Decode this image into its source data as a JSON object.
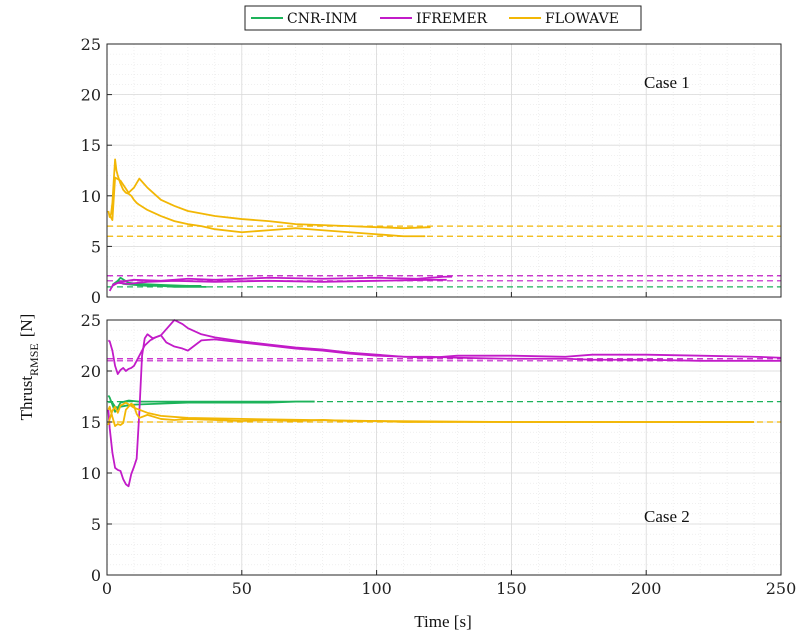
{
  "figure": {
    "xlabel": "Time [s]",
    "ylabel_main": "Thrust",
    "ylabel_sub": "RMSE",
    "ylabel_unit": "[N]"
  },
  "legend": [
    {
      "name": "CNR-INM",
      "color": "#1db35a"
    },
    {
      "name": "IFREMER",
      "color": "#c21bc8"
    },
    {
      "name": "FLOWAVE",
      "color": "#f2b705"
    }
  ],
  "chart_data": [
    {
      "type": "line",
      "annotation": "Case 1",
      "xlim": [
        0,
        250
      ],
      "ylim": [
        0,
        25
      ],
      "xticks": [
        0,
        50,
        100,
        150,
        200,
        250
      ],
      "yticks": [
        0,
        5,
        10,
        15,
        20,
        25
      ],
      "grid": true,
      "legend_position": "top-center",
      "series": [
        {
          "name": "CNR-INM",
          "color": "#1db35a",
          "style": "solid",
          "x": [
            2,
            4,
            6,
            10,
            15,
            20,
            25,
            30,
            35,
            37
          ],
          "y": [
            1.2,
            1.6,
            1.3,
            1.2,
            1.1,
            1.1,
            1.0,
            1.0,
            1.0,
            1.0
          ]
        },
        {
          "name": "CNR-INM",
          "color": "#1db35a",
          "style": "solid",
          "x": [
            3,
            5,
            8,
            12,
            20,
            30,
            35
          ],
          "y": [
            1.3,
            1.9,
            1.4,
            1.3,
            1.2,
            1.1,
            1.1
          ]
        },
        {
          "name": "IFREMER",
          "color": "#c21bc8",
          "style": "solid",
          "x": [
            1,
            2,
            4,
            8,
            15,
            25,
            40,
            60,
            80,
            100,
            120,
            126
          ],
          "y": [
            0.6,
            1.1,
            1.4,
            1.3,
            1.5,
            1.6,
            1.5,
            1.6,
            1.5,
            1.6,
            1.7,
            1.7
          ]
        },
        {
          "name": "IFREMER",
          "color": "#c21bc8",
          "style": "solid",
          "x": [
            2,
            5,
            10,
            20,
            30,
            40,
            60,
            80,
            100,
            115,
            120,
            125,
            128
          ],
          "y": [
            1.2,
            1.5,
            1.7,
            1.6,
            1.8,
            1.7,
            1.9,
            1.8,
            1.9,
            1.8,
            1.9,
            2.0,
            2.0
          ]
        },
        {
          "name": "FLOWAVE",
          "color": "#f2b705",
          "style": "solid",
          "x": [
            0.5,
            1,
            1.5,
            2,
            2.5,
            3,
            3.5,
            4,
            5,
            6,
            7,
            8,
            9,
            10,
            11,
            12,
            15,
            20,
            25,
            30,
            35,
            40,
            50,
            60,
            70,
            80,
            90,
            100,
            110,
            118
          ],
          "y": [
            8.5,
            7.9,
            8.2,
            9.3,
            11.5,
            13.6,
            12.5,
            12.0,
            11.2,
            10.6,
            10.3,
            10.2,
            10.0,
            9.6,
            9.3,
            9.1,
            8.6,
            8.0,
            7.5,
            7.2,
            7.0,
            6.7,
            6.4,
            6.6,
            6.8,
            6.6,
            6.4,
            6.2,
            6.0,
            6.0
          ]
        },
        {
          "name": "FLOWAVE",
          "color": "#f2b705",
          "style": "solid",
          "x": [
            1,
            2,
            3,
            5,
            8,
            10,
            12,
            15,
            20,
            25,
            30,
            40,
            50,
            60,
            70,
            80,
            90,
            100,
            110,
            120
          ],
          "y": [
            8.1,
            7.6,
            11.8,
            11.5,
            10.3,
            10.8,
            11.7,
            10.8,
            9.6,
            9.0,
            8.5,
            8.0,
            7.7,
            7.5,
            7.2,
            7.1,
            7.0,
            6.9,
            6.8,
            6.9
          ]
        },
        {
          "name": "CNR-INM",
          "color": "#1db35a",
          "style": "dashed",
          "x": [
            0,
            250
          ],
          "y": [
            1.0,
            1.0
          ]
        },
        {
          "name": "IFREMER",
          "color": "#c21bc8",
          "style": "dashed",
          "x": [
            0,
            250
          ],
          "y": [
            1.6,
            1.6
          ]
        },
        {
          "name": "IFREMER",
          "color": "#c21bc8",
          "style": "dashed",
          "x": [
            0,
            250
          ],
          "y": [
            2.1,
            2.1
          ]
        },
        {
          "name": "FLOWAVE",
          "color": "#f2b705",
          "style": "dashed",
          "x": [
            0,
            250
          ],
          "y": [
            6.0,
            6.0
          ]
        },
        {
          "name": "FLOWAVE",
          "color": "#f2b705",
          "style": "dashed",
          "x": [
            0,
            250
          ],
          "y": [
            7.0,
            7.0
          ]
        }
      ]
    },
    {
      "type": "line",
      "annotation": "Case 2",
      "xlim": [
        0,
        250
      ],
      "ylim": [
        0,
        25
      ],
      "xticks": [
        0,
        50,
        100,
        150,
        200,
        250
      ],
      "yticks": [
        0,
        5,
        10,
        15,
        20,
        25
      ],
      "grid": true,
      "series": [
        {
          "name": "CNR-INM",
          "color": "#1db35a",
          "style": "solid",
          "x": [
            0.5,
            1,
            2,
            3,
            4,
            5,
            7,
            10,
            20,
            30,
            40,
            50,
            60,
            70,
            77
          ],
          "y": [
            17.6,
            17.4,
            16.7,
            16.0,
            16.3,
            16.5,
            16.6,
            16.7,
            16.8,
            16.9,
            16.9,
            16.9,
            16.9,
            17.0,
            17.0
          ]
        },
        {
          "name": "CNR-INM",
          "color": "#1db35a",
          "style": "solid",
          "x": [
            0.5,
            1,
            2,
            3,
            4,
            5,
            8,
            12,
            20,
            30,
            40,
            50,
            60,
            70,
            77
          ],
          "y": [
            16.9,
            17.0,
            16.9,
            16.5,
            16.4,
            16.9,
            17.1,
            17.0,
            17.0,
            17.0,
            17.0,
            17.0,
            17.0,
            17.0,
            17.0
          ]
        },
        {
          "name": "IFREMER",
          "color": "#c21bc8",
          "style": "solid",
          "x": [
            0.5,
            1,
            2,
            3,
            4,
            5,
            6,
            7,
            8,
            9,
            10,
            11,
            12,
            13,
            14,
            15,
            17,
            20,
            22,
            25,
            28,
            30,
            35,
            40,
            50,
            60,
            70,
            80,
            90,
            100,
            110,
            120,
            130,
            150,
            170,
            180,
            200,
            220,
            240,
            250
          ],
          "y": [
            16.2,
            14.4,
            12.0,
            10.5,
            10.3,
            10.2,
            9.4,
            8.9,
            8.7,
            9.9,
            10.6,
            11.4,
            16.0,
            21.5,
            23.2,
            23.6,
            23.2,
            23.5,
            22.8,
            22.4,
            22.2,
            22.0,
            23.0,
            23.1,
            22.8,
            22.5,
            22.2,
            22.0,
            21.7,
            21.5,
            21.4,
            21.3,
            21.5,
            21.5,
            21.4,
            21.6,
            21.6,
            21.5,
            21.4,
            21.3
          ]
        },
        {
          "name": "IFREMER",
          "color": "#c21bc8",
          "style": "solid",
          "x": [
            0.5,
            1,
            2,
            3,
            4,
            5,
            6,
            7,
            8,
            9,
            10,
            12,
            14,
            16,
            18,
            20,
            22,
            25,
            28,
            30,
            35,
            40,
            50,
            60,
            70,
            80,
            90,
            100,
            110,
            120,
            130,
            150,
            170,
            180,
            200,
            220,
            240,
            250
          ],
          "y": [
            23.0,
            22.9,
            22.0,
            20.5,
            19.7,
            20.1,
            20.3,
            20.0,
            20.2,
            20.3,
            20.5,
            21.5,
            22.5,
            23.0,
            23.3,
            23.5,
            24.1,
            25.0,
            24.6,
            24.2,
            23.6,
            23.3,
            22.9,
            22.6,
            22.3,
            22.1,
            21.8,
            21.6,
            21.4,
            21.4,
            21.3,
            21.2,
            21.2,
            21.1,
            21.1,
            21.0,
            21.0,
            21.0
          ]
        },
        {
          "name": "FLOWAVE",
          "color": "#f2b705",
          "style": "solid",
          "x": [
            0.5,
            1,
            2,
            3,
            4,
            5,
            6,
            7,
            8,
            9,
            10,
            11,
            12,
            15,
            20,
            25,
            30,
            40,
            50,
            60,
            70,
            80,
            90,
            100,
            110,
            120,
            150,
            200,
            240
          ],
          "y": [
            16.2,
            16.5,
            15.5,
            14.6,
            14.8,
            14.7,
            14.9,
            16.2,
            16.5,
            16.8,
            16.6,
            15.8,
            15.4,
            15.7,
            15.3,
            15.2,
            15.3,
            15.2,
            15.1,
            15.2,
            15.1,
            15.2,
            15.1,
            15.1,
            15.0,
            15.0,
            15.0,
            15.0,
            15.0
          ]
        },
        {
          "name": "FLOWAVE",
          "color": "#f2b705",
          "style": "solid",
          "x": [
            0.5,
            1,
            2,
            3,
            4,
            5,
            7,
            10,
            15,
            20,
            30,
            50,
            100,
            150,
            200,
            240
          ],
          "y": [
            14.7,
            15.3,
            16.1,
            16.5,
            15.9,
            16.6,
            16.9,
            16.4,
            15.9,
            15.6,
            15.4,
            15.3,
            15.1,
            15.0,
            15.0,
            15.0
          ]
        },
        {
          "name": "CNR-INM",
          "color": "#1db35a",
          "style": "dashed",
          "x": [
            0,
            250
          ],
          "y": [
            17.0,
            17.0
          ]
        },
        {
          "name": "IFREMER",
          "color": "#c21bc8",
          "style": "dashed",
          "x": [
            0,
            250
          ],
          "y": [
            21.0,
            21.0
          ]
        },
        {
          "name": "IFREMER",
          "color": "#c21bc8",
          "style": "dashed",
          "x": [
            0,
            250
          ],
          "y": [
            21.2,
            21.2
          ]
        },
        {
          "name": "FLOWAVE",
          "color": "#f2b705",
          "style": "dashed",
          "x": [
            0,
            250
          ],
          "y": [
            15.0,
            15.0
          ]
        }
      ]
    }
  ]
}
